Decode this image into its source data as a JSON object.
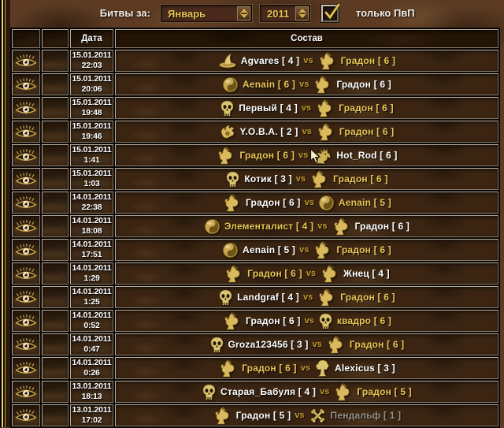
{
  "filter": {
    "battles_for_label": "Битвы за:",
    "month_select": {
      "value": "Январь"
    },
    "year_select": {
      "value": "2011"
    },
    "pvp_checkbox": {
      "checked": true,
      "label": "только ПвП"
    }
  },
  "colors": {
    "gold_name": "#e9c654",
    "white_name": "#ffffff",
    "gray_name": "#99938a",
    "vs": "#c19a2e",
    "select_text": "#e8c553",
    "leather_base": "#5c3b22"
  },
  "table": {
    "headers": {
      "view": "",
      "flag": "",
      "date": "Дата",
      "roster": "Состав"
    },
    "vs_label": "vs",
    "rows": [
      {
        "date": "15.01.2011",
        "time": "22:03",
        "left": {
          "icon": "wizard-hat",
          "label": "Agvares [ 4 ]",
          "style": "white"
        },
        "right": {
          "icon": "griffin",
          "label": "Градон [ 6 ]",
          "style": "gold"
        },
        "cursor": false
      },
      {
        "date": "15.01.2011",
        "time": "20:06",
        "left": {
          "icon": "orb",
          "label": "Aenain [ 6 ]",
          "style": "gold"
        },
        "right": {
          "icon": "griffin",
          "label": "Градон [ 6 ]",
          "style": "white"
        },
        "cursor": false
      },
      {
        "date": "15.01.2011",
        "time": "19:48",
        "left": {
          "icon": "skull",
          "label": "Первый [ 4 ]",
          "style": "white"
        },
        "right": {
          "icon": "griffin",
          "label": "Градон [ 6 ]",
          "style": "gold"
        },
        "cursor": false
      },
      {
        "date": "15.01.2011",
        "time": "19:46",
        "left": {
          "icon": "claw",
          "label": "Y.O.B.A. [ 2 ]",
          "style": "white"
        },
        "right": {
          "icon": "griffin",
          "label": "Градон [ 6 ]",
          "style": "gold"
        },
        "cursor": false
      },
      {
        "date": "15.01.2011",
        "time": "1:41",
        "left": {
          "icon": "griffin",
          "label": "Градон [ 6 ]",
          "style": "gold"
        },
        "right": {
          "icon": "dragon",
          "label": "Hot_Rod [ 6 ]",
          "style": "white"
        },
        "cursor": true
      },
      {
        "date": "15.01.2011",
        "time": "1:03",
        "left": {
          "icon": "skull",
          "label": "Котик [ 3 ]",
          "style": "white"
        },
        "right": {
          "icon": "griffin",
          "label": "Градон [ 6 ]",
          "style": "gold"
        },
        "cursor": false
      },
      {
        "date": "14.01.2011",
        "time": "22:38",
        "left": {
          "icon": "griffin",
          "label": "Градон [ 6 ]",
          "style": "white"
        },
        "right": {
          "icon": "orb",
          "label": "Aenain [ 5 ]",
          "style": "gold"
        },
        "cursor": false
      },
      {
        "date": "14.01.2011",
        "time": "18:08",
        "left": {
          "icon": "orb",
          "label": "Элементалист [ 4 ]",
          "style": "gold"
        },
        "right": {
          "icon": "griffin",
          "label": "Градон [ 6 ]",
          "style": "white"
        },
        "cursor": false
      },
      {
        "date": "14.01.2011",
        "time": "17:51",
        "left": {
          "icon": "orb",
          "label": "Aenain [ 5 ]",
          "style": "white"
        },
        "right": {
          "icon": "griffin",
          "label": "Градон [ 6 ]",
          "style": "gold"
        },
        "cursor": false
      },
      {
        "date": "14.01.2011",
        "time": "1:29",
        "left": {
          "icon": "griffin",
          "label": "Градон [ 6 ]",
          "style": "gold"
        },
        "right": {
          "icon": "griffin",
          "label": "Жнец [ 4 ]",
          "style": "white"
        },
        "cursor": false
      },
      {
        "date": "14.01.2011",
        "time": "1:25",
        "left": {
          "icon": "skull",
          "label": "Landgraf [ 4 ]",
          "style": "white"
        },
        "right": {
          "icon": "griffin",
          "label": "Градон [ 6 ]",
          "style": "gold"
        },
        "cursor": false
      },
      {
        "date": "14.01.2011",
        "time": "0:52",
        "left": {
          "icon": "griffin",
          "label": "Градон [ 6 ]",
          "style": "white"
        },
        "right": {
          "icon": "skull",
          "label": "квадро [ 6 ]",
          "style": "gold"
        },
        "cursor": false
      },
      {
        "date": "14.01.2011",
        "time": "0:47",
        "left": {
          "icon": "skull",
          "label": "Groza123456 [ 3 ]",
          "style": "white"
        },
        "right": {
          "icon": "griffin",
          "label": "Градон [ 6 ]",
          "style": "gold"
        },
        "cursor": false
      },
      {
        "date": "14.01.2011",
        "time": "0:26",
        "left": {
          "icon": "griffin",
          "label": "Градон [ 6 ]",
          "style": "gold"
        },
        "right": {
          "icon": "tree",
          "label": "Alexicus [ 3 ]",
          "style": "white"
        },
        "cursor": false
      },
      {
        "date": "13.01.2011",
        "time": "18:13",
        "left": {
          "icon": "skull",
          "label": "Старая_Бабуля [ 4 ]",
          "style": "white"
        },
        "right": {
          "icon": "griffin",
          "label": "Градон [ 5 ]",
          "style": "gold"
        },
        "cursor": false
      },
      {
        "date": "13.01.2011",
        "time": "17:02",
        "left": {
          "icon": "griffin",
          "label": "Градон [ 5 ]",
          "style": "white"
        },
        "right": {
          "icon": "bones",
          "label": "Пендальф [ 1 ]",
          "style": "gray"
        },
        "cursor": false
      }
    ]
  }
}
